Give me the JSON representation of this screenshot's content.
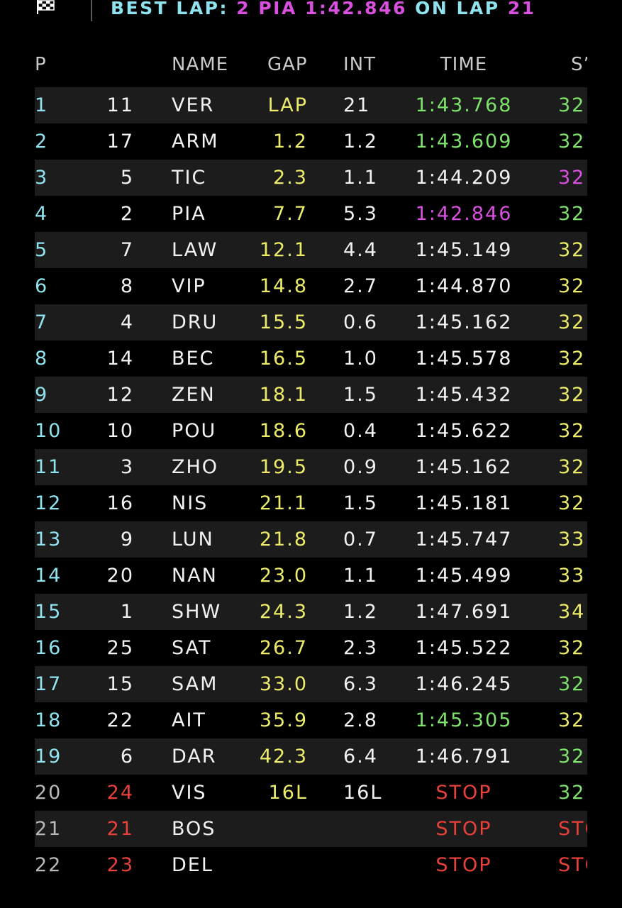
{
  "header": {
    "best_lap_label": "BEST LAP:",
    "best_lap_value": "2 PIA 1:42.846",
    "on_lap_label": "ON LAP",
    "on_lap_value": "21"
  },
  "columns": {
    "pos": "P",
    "name": "NAME",
    "gap": "GAP",
    "int": "INT",
    "time": "TIME",
    "sector": "S’"
  },
  "colors": {
    "position_cyan": "#8fe3ef",
    "position_grey": "#b8b8b8",
    "gap_yellow": "#ecec6a",
    "time_green": "#7de36a",
    "time_purple": "#d94fe0",
    "stop_red": "#e8403b",
    "row_alt": "#1c1c1c",
    "background": "#000000"
  },
  "rows": [
    {
      "pos": "1",
      "num": "11",
      "name": "VER",
      "gap": "LAP",
      "int": "21",
      "time": "1:43.768",
      "sector": "32",
      "time_style": "green",
      "sector_style": "green",
      "pos_style": "cyan",
      "num_style": "white",
      "gap_style": "yellow"
    },
    {
      "pos": "2",
      "num": "17",
      "name": "ARM",
      "gap": "1.2",
      "int": "1.2",
      "time": "1:43.609",
      "sector": "32",
      "time_style": "green",
      "sector_style": "green",
      "pos_style": "cyan",
      "num_style": "white",
      "gap_style": "yellow"
    },
    {
      "pos": "3",
      "num": "5",
      "name": "TIC",
      "gap": "2.3",
      "int": "1.1",
      "time": "1:44.209",
      "sector": "32",
      "time_style": "white",
      "sector_style": "purple",
      "pos_style": "cyan",
      "num_style": "white",
      "gap_style": "yellow"
    },
    {
      "pos": "4",
      "num": "2",
      "name": "PIA",
      "gap": "7.7",
      "int": "5.3",
      "time": "1:42.846",
      "sector": "32",
      "time_style": "purple",
      "sector_style": "green",
      "pos_style": "cyan",
      "num_style": "white",
      "gap_style": "yellow"
    },
    {
      "pos": "5",
      "num": "7",
      "name": "LAW",
      "gap": "12.1",
      "int": "4.4",
      "time": "1:45.149",
      "sector": "32",
      "time_style": "white",
      "sector_style": "yellow",
      "pos_style": "cyan",
      "num_style": "white",
      "gap_style": "yellow"
    },
    {
      "pos": "6",
      "num": "8",
      "name": "VIP",
      "gap": "14.8",
      "int": "2.7",
      "time": "1:44.870",
      "sector": "32",
      "time_style": "white",
      "sector_style": "yellow",
      "pos_style": "cyan",
      "num_style": "white",
      "gap_style": "yellow"
    },
    {
      "pos": "7",
      "num": "4",
      "name": "DRU",
      "gap": "15.5",
      "int": "0.6",
      "time": "1:45.162",
      "sector": "32",
      "time_style": "white",
      "sector_style": "yellow",
      "pos_style": "cyan",
      "num_style": "white",
      "gap_style": "yellow"
    },
    {
      "pos": "8",
      "num": "14",
      "name": "BEC",
      "gap": "16.5",
      "int": "1.0",
      "time": "1:45.578",
      "sector": "32",
      "time_style": "white",
      "sector_style": "yellow",
      "pos_style": "cyan",
      "num_style": "white",
      "gap_style": "yellow"
    },
    {
      "pos": "9",
      "num": "12",
      "name": "ZEN",
      "gap": "18.1",
      "int": "1.5",
      "time": "1:45.432",
      "sector": "32",
      "time_style": "white",
      "sector_style": "yellow",
      "pos_style": "cyan",
      "num_style": "white",
      "gap_style": "yellow"
    },
    {
      "pos": "10",
      "num": "10",
      "name": "POU",
      "gap": "18.6",
      "int": "0.4",
      "time": "1:45.622",
      "sector": "32",
      "time_style": "white",
      "sector_style": "yellow",
      "pos_style": "cyan",
      "num_style": "white",
      "gap_style": "yellow"
    },
    {
      "pos": "11",
      "num": "3",
      "name": "ZHO",
      "gap": "19.5",
      "int": "0.9",
      "time": "1:45.162",
      "sector": "32",
      "time_style": "white",
      "sector_style": "yellow",
      "pos_style": "cyan",
      "num_style": "white",
      "gap_style": "yellow"
    },
    {
      "pos": "12",
      "num": "16",
      "name": "NIS",
      "gap": "21.1",
      "int": "1.5",
      "time": "1:45.181",
      "sector": "32",
      "time_style": "white",
      "sector_style": "yellow",
      "pos_style": "cyan",
      "num_style": "white",
      "gap_style": "yellow"
    },
    {
      "pos": "13",
      "num": "9",
      "name": "LUN",
      "gap": "21.8",
      "int": "0.7",
      "time": "1:45.747",
      "sector": "33",
      "time_style": "white",
      "sector_style": "yellow",
      "pos_style": "cyan",
      "num_style": "white",
      "gap_style": "yellow"
    },
    {
      "pos": "14",
      "num": "20",
      "name": "NAN",
      "gap": "23.0",
      "int": "1.1",
      "time": "1:45.499",
      "sector": "33",
      "time_style": "white",
      "sector_style": "yellow",
      "pos_style": "cyan",
      "num_style": "white",
      "gap_style": "yellow"
    },
    {
      "pos": "15",
      "num": "1",
      "name": "SHW",
      "gap": "24.3",
      "int": "1.2",
      "time": "1:47.691",
      "sector": "34",
      "time_style": "white",
      "sector_style": "yellow",
      "pos_style": "cyan",
      "num_style": "white",
      "gap_style": "yellow"
    },
    {
      "pos": "16",
      "num": "25",
      "name": "SAT",
      "gap": "26.7",
      "int": "2.3",
      "time": "1:45.522",
      "sector": "32",
      "time_style": "white",
      "sector_style": "yellow",
      "pos_style": "cyan",
      "num_style": "white",
      "gap_style": "yellow"
    },
    {
      "pos": "17",
      "num": "15",
      "name": "SAM",
      "gap": "33.0",
      "int": "6.3",
      "time": "1:46.245",
      "sector": "32",
      "time_style": "white",
      "sector_style": "green",
      "pos_style": "cyan",
      "num_style": "white",
      "gap_style": "yellow"
    },
    {
      "pos": "18",
      "num": "22",
      "name": "AIT",
      "gap": "35.9",
      "int": "2.8",
      "time": "1:45.305",
      "sector": "32",
      "time_style": "green",
      "sector_style": "yellow",
      "pos_style": "cyan",
      "num_style": "white",
      "gap_style": "yellow"
    },
    {
      "pos": "19",
      "num": "6",
      "name": "DAR",
      "gap": "42.3",
      "int": "6.4",
      "time": "1:46.791",
      "sector": "32",
      "time_style": "white",
      "sector_style": "green",
      "pos_style": "cyan",
      "num_style": "white",
      "gap_style": "yellow"
    },
    {
      "pos": "20",
      "num": "24",
      "name": "VIS",
      "gap": "16L",
      "int": "16L",
      "time": "STOP",
      "sector": "32",
      "time_style": "stop",
      "sector_style": "green",
      "pos_style": "grey",
      "num_style": "red",
      "gap_style": "yellow"
    },
    {
      "pos": "21",
      "num": "21",
      "name": "BOS",
      "gap": "",
      "int": "",
      "time": "STOP",
      "sector": "STOP",
      "time_style": "stop",
      "sector_style": "stop",
      "pos_style": "grey",
      "num_style": "red",
      "gap_style": "yellow"
    },
    {
      "pos": "22",
      "num": "23",
      "name": "DEL",
      "gap": "",
      "int": "",
      "time": "STOP",
      "sector": "STOP",
      "time_style": "stop",
      "sector_style": "stop",
      "pos_style": "grey",
      "num_style": "red",
      "gap_style": "yellow"
    }
  ]
}
